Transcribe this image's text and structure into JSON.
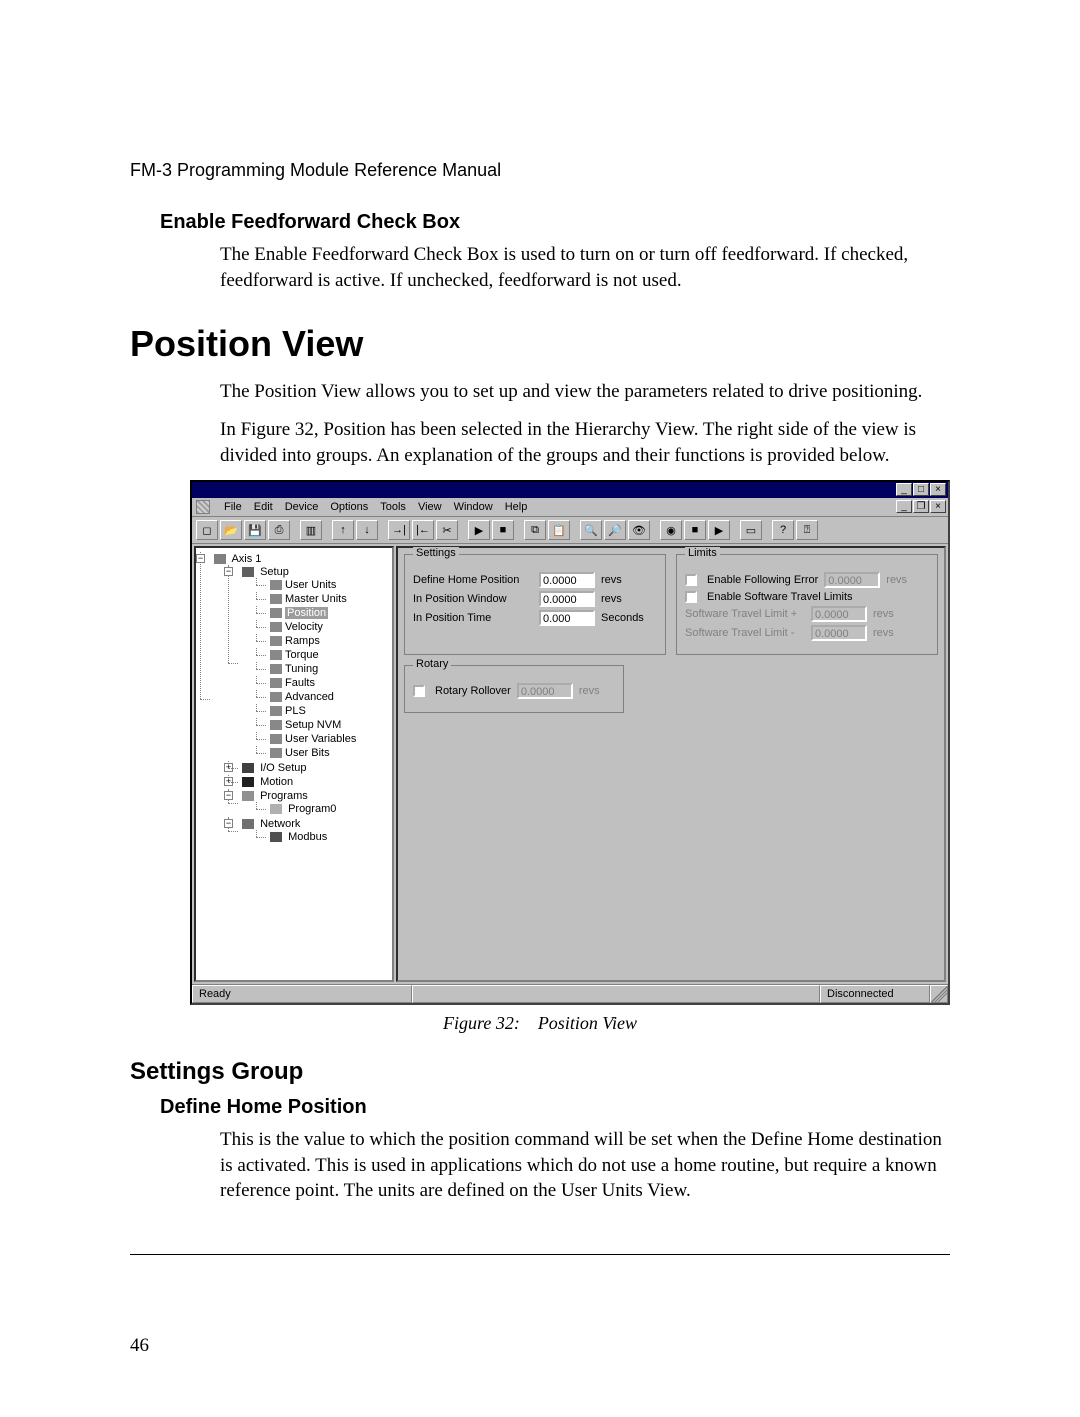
{
  "doc": {
    "running_head": "FM-3 Programming Module Reference Manual",
    "page_number": "46",
    "h_feedforward": "Enable Feedforward Check Box",
    "p_feedforward": "The Enable Feedforward Check Box is used to turn on or turn off feedforward. If checked, feedforward is active. If unchecked, feedforward is not used.",
    "h_main": "Position View",
    "p_main1": "The Position View allows you to set up and view the parameters related to drive positioning.",
    "p_main2": "In Figure 32, Position has been selected in the Hierarchy View. The right side of the view is divided into groups. An explanation of the groups and their functions is provided below.",
    "fig_caption": "Figure 32: Position View",
    "h_settings_group": "Settings Group",
    "h_define_home": "Define Home Position",
    "p_define_home": "This is the value to which the position command will be set when the Define Home destination is activated. This is used in applications which do not use a home routine, but require a known reference point. The units are defined on the User Units View."
  },
  "menubar": [
    "File",
    "Edit",
    "Device",
    "Options",
    "Tools",
    "View",
    "Window",
    "Help"
  ],
  "toolbar_icons": [
    "new-icon",
    "open-icon",
    "save-icon",
    "print-icon",
    "sep",
    "config-icon",
    "sep",
    "upload-icon",
    "download-icon",
    "sep",
    "connect-icon",
    "disconnect-icon",
    "cut-icon",
    "sep",
    "run-icon",
    "stop2-icon",
    "sep",
    "copy-icon",
    "paste-icon",
    "sep",
    "zoom-in-icon",
    "zoom-out-icon",
    "watch-icon",
    "sep",
    "lamp-icon",
    "stop-icon",
    "play-icon",
    "sep",
    "window-icon",
    "sep",
    "help-icon",
    "contexthelp-icon"
  ],
  "tree": {
    "root": "Axis 1",
    "setup": "Setup",
    "items": [
      "User Units",
      "Master Units",
      "Position",
      "Velocity",
      "Ramps",
      "Torque",
      "Tuning",
      "Faults",
      "Advanced",
      "PLS",
      "Setup NVM",
      "User Variables",
      "User Bits"
    ],
    "selected_index": 2,
    "io": "I/O Setup",
    "motion": "Motion",
    "programs": "Programs",
    "program0": "Program0",
    "network": "Network",
    "modbus": "Modbus"
  },
  "settings_box": {
    "legend": "Settings",
    "rows": [
      {
        "label": "Define Home Position",
        "value": "0.0000",
        "unit": "revs"
      },
      {
        "label": "In Position Window",
        "value": "0.0000",
        "unit": "revs"
      },
      {
        "label": "In Position Time",
        "value": "0.000",
        "unit": "Seconds"
      }
    ]
  },
  "limits_box": {
    "legend": "Limits",
    "following_error_label": "Enable Following Error",
    "following_error_value": "0.0000",
    "following_error_unit": "revs",
    "soft_limits_label": "Enable Software Travel Limits",
    "limit_plus_label": "Software Travel Limit +",
    "limit_plus_value": "0.0000",
    "limit_minus_label": "Software Travel Limit -",
    "limit_minus_value": "0.0000",
    "limit_unit": "revs"
  },
  "rotary_box": {
    "legend": "Rotary",
    "label": "Rotary Rollover",
    "value": "0.0000",
    "unit": "revs"
  },
  "status": {
    "ready": "Ready",
    "disconnected": "Disconnected"
  },
  "winbtns": {
    "min": "_",
    "max": "□",
    "close": "×",
    "restore": "❐"
  }
}
